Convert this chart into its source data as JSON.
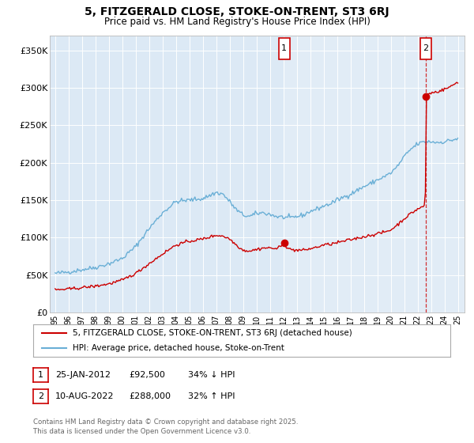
{
  "title": "5, FITZGERALD CLOSE, STOKE-ON-TRENT, ST3 6RJ",
  "subtitle": "Price paid vs. HM Land Registry's House Price Index (HPI)",
  "background_color": "#dce9f5",
  "plot_bg_color": "#dce9f5",
  "ylim": [
    0,
    370000
  ],
  "yticks": [
    0,
    50000,
    100000,
    150000,
    200000,
    250000,
    300000,
    350000
  ],
  "ytick_labels": [
    "£0",
    "£50K",
    "£100K",
    "£150K",
    "£200K",
    "£250K",
    "£300K",
    "£350K"
  ],
  "x_start_year": 1995,
  "x_end_year": 2025,
  "hpi_color": "#6aafd6",
  "property_color": "#cc0000",
  "dashed_color": "#cc0000",
  "marker1_year": 2012.07,
  "marker1_value": 92500,
  "marker2_year": 2022.61,
  "marker2_value": 288000,
  "legend_property": "5, FITZGERALD CLOSE, STOKE-ON-TRENT, ST3 6RJ (detached house)",
  "legend_hpi": "HPI: Average price, detached house, Stoke-on-Trent",
  "note1_label": "1",
  "note1_date": "25-JAN-2012",
  "note1_price": "£92,500",
  "note1_change": "34% ↓ HPI",
  "note2_label": "2",
  "note2_date": "10-AUG-2022",
  "note2_price": "£288,000",
  "note2_change": "32% ↑ HPI",
  "footer": "Contains HM Land Registry data © Crown copyright and database right 2025.\nThis data is licensed under the Open Government Licence v3.0."
}
